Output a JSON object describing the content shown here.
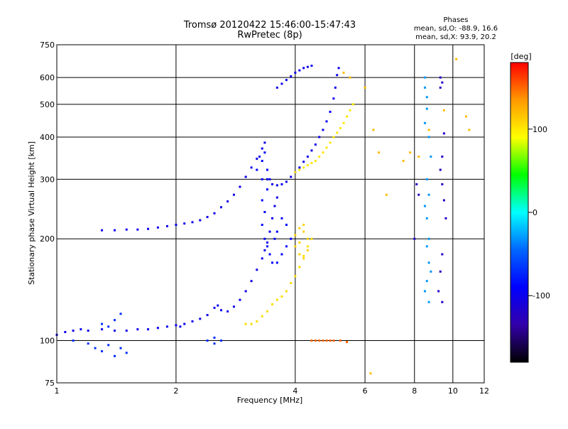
{
  "chart_data": {
    "type": "scatter",
    "title": "Tromsø 20120422 15:46:00-15:47:43",
    "subtitle": "RwPretec (8p)",
    "xlabel": "Frequency [MHz]",
    "ylabel": "Stationary phase Virtual Height [km]",
    "x_scale": "log",
    "y_scale": "log",
    "xlim": [
      1,
      12
    ],
    "ylim": [
      75,
      750
    ],
    "x_ticks": [
      1,
      2,
      4,
      6,
      8,
      10,
      12
    ],
    "x_tick_labels": [
      "1",
      "2",
      "4",
      "6",
      "8",
      "10",
      "12"
    ],
    "y_ticks": [
      75,
      100,
      200,
      300,
      400,
      500,
      600,
      750
    ],
    "y_tick_labels": [
      "75",
      "100",
      "200",
      "300",
      "400",
      "500",
      "600",
      "750"
    ],
    "grid": true,
    "phases": {
      "heading": "Phases",
      "line_o": "mean, sd,O: -88.9, 16.6",
      "line_x": "mean, sd,X: 93.9, 20.2"
    },
    "colorbar": {
      "label": "[deg]",
      "range": [
        -180,
        180
      ],
      "ticks": [
        100,
        0,
        -100
      ],
      "tick_labels": [
        "100",
        "0",
        "-100"
      ],
      "colors": [
        "#ff0000",
        "#ff9900",
        "#ffff00",
        "#00ff00",
        "#00ffff",
        "#0066ff",
        "#0000ff",
        "#3300aa",
        "#000000"
      ]
    },
    "series": [
      {
        "phase": -100,
        "points": [
          [
            1.0,
            104
          ],
          [
            1.05,
            106
          ],
          [
            1.1,
            107
          ],
          [
            1.15,
            108
          ],
          [
            1.2,
            107
          ],
          [
            1.3,
            108
          ],
          [
            1.4,
            107
          ],
          [
            1.5,
            107
          ],
          [
            1.6,
            108
          ],
          [
            1.7,
            108
          ],
          [
            1.8,
            109
          ],
          [
            1.9,
            110
          ],
          [
            2.0,
            111
          ],
          [
            2.05,
            110
          ],
          [
            2.1,
            112
          ],
          [
            2.2,
            114
          ],
          [
            2.3,
            116
          ],
          [
            2.4,
            119
          ],
          [
            2.5,
            125
          ],
          [
            2.55,
            127
          ],
          [
            2.6,
            123
          ],
          [
            2.7,
            122
          ],
          [
            2.8,
            126
          ],
          [
            2.9,
            132
          ],
          [
            3.0,
            140
          ],
          [
            3.1,
            150
          ],
          [
            3.2,
            162
          ],
          [
            3.3,
            175
          ],
          [
            3.35,
            185
          ],
          [
            3.4,
            195
          ],
          [
            3.45,
            210
          ],
          [
            3.5,
            230
          ],
          [
            3.55,
            250
          ],
          [
            3.6,
            265
          ]
        ]
      },
      {
        "phase": -100,
        "points": [
          [
            1.3,
            212
          ],
          [
            1.4,
            212
          ],
          [
            1.5,
            213
          ],
          [
            1.6,
            213
          ],
          [
            1.7,
            214
          ],
          [
            1.8,
            216
          ],
          [
            1.9,
            218
          ],
          [
            2.0,
            220
          ],
          [
            2.1,
            222
          ],
          [
            2.2,
            224
          ],
          [
            2.3,
            227
          ],
          [
            2.4,
            232
          ],
          [
            2.5,
            238
          ],
          [
            2.6,
            248
          ],
          [
            2.7,
            258
          ],
          [
            2.8,
            270
          ],
          [
            2.9,
            285
          ],
          [
            3.0,
            305
          ],
          [
            3.1,
            325
          ],
          [
            3.2,
            345
          ],
          [
            3.3,
            370
          ],
          [
            3.35,
            385
          ]
        ]
      },
      {
        "phase": -100,
        "points": [
          [
            3.4,
            300
          ],
          [
            3.5,
            290
          ],
          [
            3.6,
            288
          ],
          [
            3.7,
            290
          ],
          [
            3.8,
            295
          ],
          [
            3.9,
            305
          ],
          [
            4.0,
            315
          ],
          [
            4.1,
            325
          ],
          [
            4.2,
            338
          ],
          [
            4.3,
            350
          ],
          [
            4.4,
            365
          ],
          [
            4.5,
            380
          ],
          [
            4.6,
            400
          ],
          [
            4.7,
            420
          ],
          [
            4.8,
            445
          ],
          [
            4.9,
            475
          ],
          [
            5.0,
            520
          ],
          [
            5.05,
            560
          ],
          [
            5.1,
            610
          ],
          [
            5.15,
            640
          ]
        ]
      },
      {
        "phase": -100,
        "points": [
          [
            3.6,
            560
          ],
          [
            3.7,
            575
          ],
          [
            3.8,
            590
          ],
          [
            3.9,
            605
          ],
          [
            4.0,
            620
          ],
          [
            4.1,
            630
          ],
          [
            4.2,
            640
          ],
          [
            4.3,
            645
          ],
          [
            4.4,
            650
          ]
        ]
      },
      {
        "phase": -90,
        "points": [
          [
            3.3,
            340
          ],
          [
            3.35,
            360
          ],
          [
            3.4,
            320
          ],
          [
            3.45,
            300
          ],
          [
            3.3,
            260
          ],
          [
            3.35,
            240
          ],
          [
            3.4,
            280
          ],
          [
            3.3,
            220
          ],
          [
            3.35,
            200
          ],
          [
            3.4,
            190
          ],
          [
            3.45,
            180
          ],
          [
            3.5,
            170
          ],
          [
            3.55,
            200
          ],
          [
            3.6,
            210
          ],
          [
            3.7,
            230
          ],
          [
            3.8,
            220
          ],
          [
            3.9,
            200
          ],
          [
            3.7,
            180
          ],
          [
            3.6,
            170
          ],
          [
            3.8,
            190
          ],
          [
            3.3,
            300
          ],
          [
            3.2,
            320
          ],
          [
            3.25,
            350
          ]
        ]
      },
      {
        "phase": 105,
        "points": [
          [
            3.0,
            112
          ],
          [
            3.1,
            112
          ],
          [
            3.2,
            114
          ],
          [
            3.3,
            118
          ],
          [
            3.4,
            122
          ],
          [
            3.5,
            128
          ],
          [
            3.6,
            132
          ],
          [
            3.7,
            135
          ],
          [
            3.8,
            140
          ],
          [
            3.9,
            148
          ],
          [
            4.0,
            155
          ],
          [
            4.1,
            165
          ],
          [
            4.2,
            178
          ],
          [
            4.3,
            190
          ],
          [
            4.4,
            200
          ]
        ]
      },
      {
        "phase": 100,
        "points": [
          [
            4.0,
            315
          ],
          [
            4.1,
            320
          ],
          [
            4.2,
            325
          ],
          [
            4.3,
            330
          ],
          [
            4.4,
            335
          ],
          [
            4.5,
            340
          ],
          [
            4.6,
            350
          ],
          [
            4.7,
            360
          ],
          [
            4.8,
            372
          ],
          [
            4.9,
            385
          ],
          [
            5.0,
            400
          ],
          [
            5.1,
            412
          ],
          [
            5.2,
            425
          ],
          [
            5.3,
            440
          ],
          [
            5.4,
            460
          ],
          [
            5.5,
            480
          ],
          [
            5.6,
            500
          ]
        ]
      },
      {
        "phase": 110,
        "points": [
          [
            4.0,
            205
          ],
          [
            4.1,
            195
          ],
          [
            4.2,
            210
          ],
          [
            4.3,
            185
          ],
          [
            4.1,
            180
          ],
          [
            4.2,
            175
          ],
          [
            4.0,
            190
          ],
          [
            4.3,
            200
          ],
          [
            4.2,
            220
          ],
          [
            4.1,
            215
          ]
        ]
      },
      {
        "phase": 150,
        "points": [
          [
            4.4,
            100
          ],
          [
            4.5,
            100
          ],
          [
            4.6,
            100
          ],
          [
            4.7,
            100
          ],
          [
            4.8,
            100
          ],
          [
            4.9,
            100
          ],
          [
            5.0,
            100
          ],
          [
            5.2,
            100
          ],
          [
            5.4,
            99
          ]
        ]
      },
      {
        "phase": -70,
        "points": [
          [
            1.1,
            100
          ],
          [
            1.2,
            98
          ],
          [
            1.25,
            95
          ],
          [
            1.3,
            93
          ],
          [
            1.35,
            97
          ],
          [
            1.4,
            90
          ],
          [
            1.45,
            95
          ],
          [
            1.5,
            92
          ],
          [
            1.45,
            120
          ],
          [
            1.4,
            115
          ],
          [
            1.35,
            110
          ],
          [
            1.3,
            112
          ],
          [
            2.4,
            100
          ],
          [
            2.5,
            98
          ],
          [
            2.6,
            100
          ],
          [
            2.5,
            102
          ]
        ]
      },
      {
        "phase": -30,
        "points": [
          [
            8.5,
            600
          ],
          [
            8.5,
            560
          ],
          [
            8.6,
            525
          ],
          [
            8.6,
            485
          ],
          [
            8.5,
            440
          ],
          [
            8.7,
            400
          ],
          [
            8.8,
            350
          ],
          [
            8.6,
            300
          ],
          [
            8.7,
            270
          ],
          [
            8.5,
            250
          ],
          [
            8.6,
            230
          ],
          [
            8.7,
            200
          ],
          [
            8.6,
            190
          ],
          [
            8.7,
            170
          ],
          [
            8.8,
            160
          ],
          [
            8.6,
            150
          ],
          [
            8.5,
            140
          ],
          [
            8.7,
            130
          ]
        ]
      },
      {
        "phase": 120,
        "points": [
          [
            5.3,
            620
          ],
          [
            5.5,
            600
          ],
          [
            6.0,
            560
          ],
          [
            6.3,
            420
          ],
          [
            6.5,
            360
          ],
          [
            6.8,
            270
          ],
          [
            7.5,
            340
          ],
          [
            7.8,
            360
          ],
          [
            8.2,
            350
          ],
          [
            8.7,
            420
          ],
          [
            9.5,
            480
          ],
          [
            10.2,
            680
          ],
          [
            10.8,
            460
          ],
          [
            11.0,
            420
          ],
          [
            6.2,
            80
          ]
        ]
      },
      {
        "phase": -120,
        "points": [
          [
            9.3,
            600
          ],
          [
            9.4,
            580
          ],
          [
            9.3,
            560
          ],
          [
            9.5,
            410
          ],
          [
            9.4,
            350
          ],
          [
            9.3,
            320
          ],
          [
            9.4,
            290
          ],
          [
            9.5,
            260
          ],
          [
            8.1,
            290
          ],
          [
            8.2,
            270
          ],
          [
            9.6,
            230
          ],
          [
            8.0,
            200
          ],
          [
            9.4,
            180
          ],
          [
            9.3,
            160
          ],
          [
            9.2,
            140
          ],
          [
            9.4,
            130
          ]
        ]
      }
    ]
  }
}
